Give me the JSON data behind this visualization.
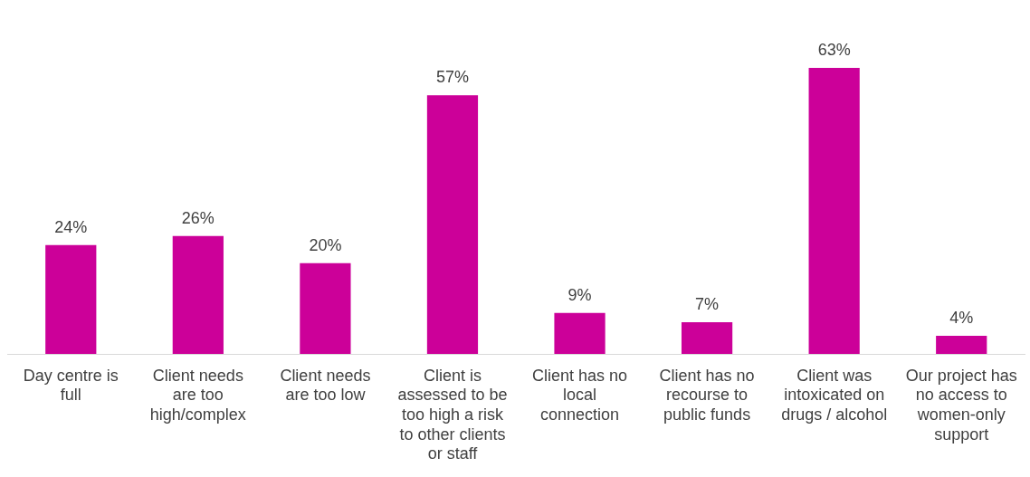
{
  "chart_data": {
    "type": "bar",
    "categories": [
      "Day centre is full",
      "Client needs are too high/complex",
      "Client needs are too low",
      "Client is assessed to be too high a risk to other clients or staff",
      "Client has no local connection",
      "Client has no recourse to public funds",
      "Client was intoxicated on drugs / alcohol",
      "Our project has no access to women-only support"
    ],
    "values": [
      24,
      26,
      20,
      57,
      9,
      7,
      63,
      4
    ],
    "value_labels": [
      "24%",
      "26%",
      "20%",
      "57%",
      "9%",
      "7%",
      "63%",
      "4%"
    ],
    "color": "#cc0099",
    "grid": false,
    "legend": false
  }
}
